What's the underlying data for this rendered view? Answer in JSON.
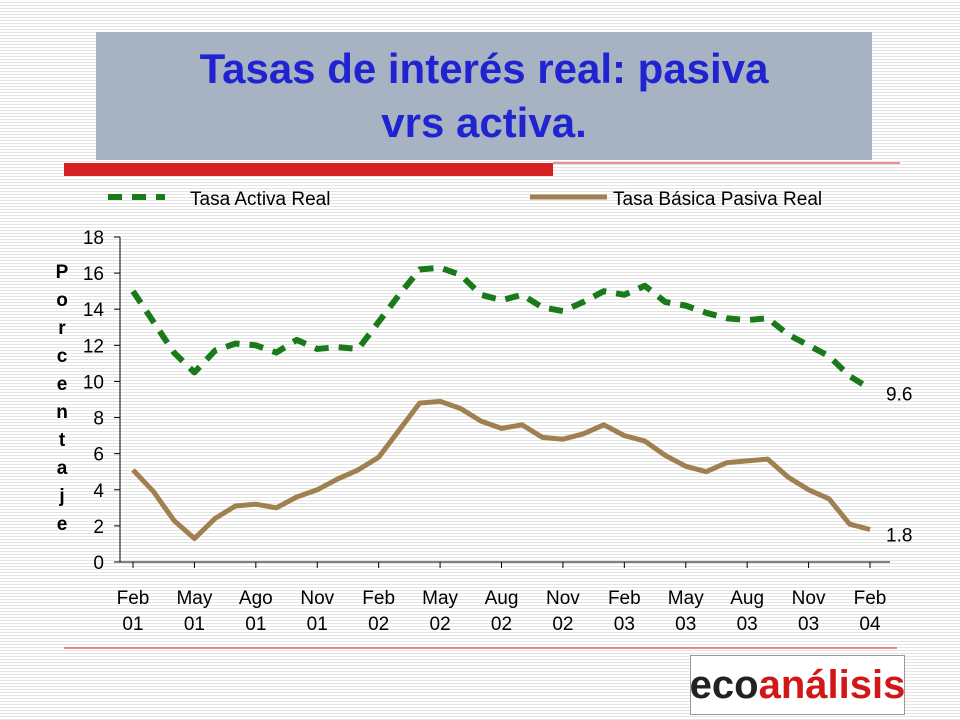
{
  "chart_data": {
    "type": "line",
    "title": "Tasas de interés real: pasiva vrs activa.",
    "y_label": "Porcentaje",
    "categories": [
      "Feb 01",
      null,
      null,
      "May 01",
      null,
      null,
      "Ago 01",
      null,
      null,
      "Nov 01",
      null,
      null,
      "Feb 02",
      null,
      null,
      "May 02",
      null,
      null,
      "Aug 02",
      null,
      null,
      "Nov 02",
      null,
      null,
      "Feb 03",
      null,
      null,
      "May 03",
      null,
      null,
      "Aug 03",
      null,
      null,
      "Nov 03",
      null,
      null,
      "Feb 04"
    ],
    "series": [
      {
        "name": "Tasa Activa Real",
        "color": "#1a7a1a",
        "dashed": true,
        "values": [
          15.0,
          13.3,
          11.6,
          10.5,
          11.7,
          12.1,
          12.0,
          11.6,
          12.3,
          11.8,
          11.9,
          11.8,
          13.3,
          14.8,
          16.2,
          16.3,
          15.9,
          14.8,
          14.5,
          14.8,
          14.1,
          13.9,
          14.4,
          15.0,
          14.8,
          15.3,
          14.4,
          14.2,
          13.8,
          13.5,
          13.4,
          13.5,
          12.6,
          12.0,
          11.4,
          10.3,
          9.6
        ]
      },
      {
        "name": "Tasa Básica Pasiva Real",
        "color": "#a08050",
        "dashed": false,
        "values": [
          5.1,
          3.9,
          2.3,
          1.3,
          2.4,
          3.1,
          3.2,
          3.0,
          3.6,
          4.0,
          4.6,
          5.1,
          5.8,
          7.3,
          8.8,
          8.9,
          8.5,
          7.8,
          7.4,
          7.6,
          6.9,
          6.8,
          7.1,
          7.6,
          7.0,
          6.7,
          5.9,
          5.3,
          5.0,
          5.5,
          5.6,
          5.7,
          4.7,
          4.0,
          3.5,
          2.1,
          1.8
        ]
      }
    ],
    "ylim": [
      0,
      18
    ],
    "yticks": [
      0,
      2,
      4,
      6,
      8,
      10,
      12,
      14,
      16,
      18
    ],
    "grid": false,
    "legend": "top"
  },
  "logo": {
    "prefix": "eco",
    "suffix": "análisis"
  }
}
